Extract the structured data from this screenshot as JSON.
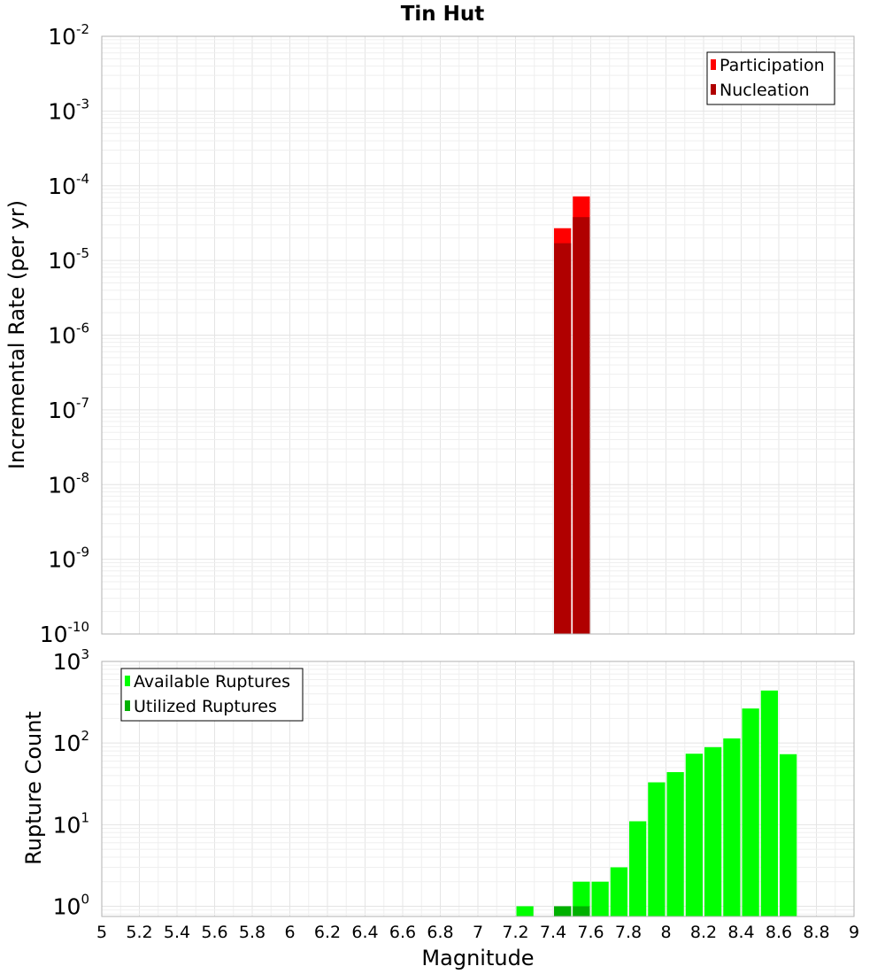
{
  "chart_data": {
    "title": "Tin Hut",
    "xlabel": "Magnitude",
    "xlim": [
      5,
      9
    ],
    "xticks": [
      "5",
      "5.2",
      "5.4",
      "5.6",
      "5.8",
      "6",
      "6.2",
      "6.4",
      "6.6",
      "6.8",
      "7",
      "7.2",
      "7.4",
      "7.6",
      "7.8",
      "8",
      "8.2",
      "8.4",
      "8.6",
      "8.8",
      "9"
    ],
    "bar_width": 0.1,
    "grid": true,
    "panels": [
      {
        "type": "bar",
        "scale": "log",
        "ylabel": "Incremental Rate (per yr)",
        "ylim": [
          1e-10,
          0.01
        ],
        "ytick_exponents": [
          -10,
          -9,
          -8,
          -7,
          -6,
          -5,
          -4,
          -3,
          -2
        ],
        "legend_position": "top-right",
        "series": [
          {
            "name": "Participation",
            "color": "#ff0000",
            "x": [
              7.45,
              7.55
            ],
            "values": [
              2.7e-05,
              7.2e-05
            ]
          },
          {
            "name": "Nucleation",
            "color": "#b00000",
            "x": [
              7.45,
              7.55
            ],
            "values": [
              1.7e-05,
              3.8e-05
            ]
          }
        ]
      },
      {
        "type": "bar",
        "scale": "log",
        "ylabel": "Rupture Count",
        "ylim": [
          0.75,
          1000
        ],
        "ytick_exponents": [
          0,
          1,
          2,
          3
        ],
        "legend_position": "top-left",
        "series": [
          {
            "name": "Available Ruptures",
            "color": "#00ff00",
            "x": [
              7.25,
              7.45,
              7.55,
              7.65,
              7.75,
              7.85,
              7.95,
              8.05,
              8.15,
              8.25,
              8.35,
              8.45,
              8.55,
              8.65
            ],
            "values": [
              1,
              1,
              2,
              2,
              3,
              11,
              33,
              44,
              74,
              89,
              114,
              265,
              440,
              73
            ]
          },
          {
            "name": "Utilized Ruptures",
            "color": "#00b000",
            "x": [
              7.45,
              7.55
            ],
            "values": [
              1,
              1
            ]
          }
        ]
      }
    ]
  }
}
